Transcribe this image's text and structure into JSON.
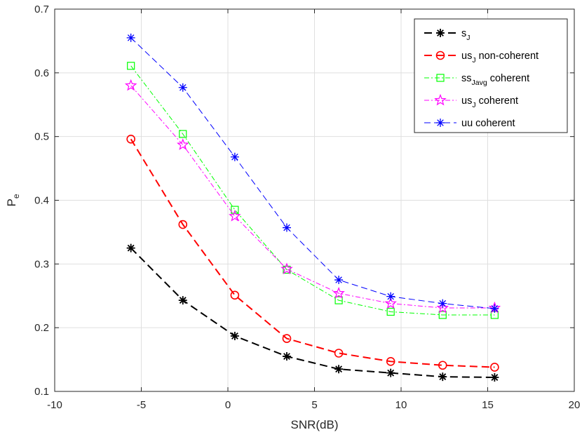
{
  "chart_data": {
    "type": "line",
    "title": "",
    "xlabel": "SNR(dB)",
    "ylabel": {
      "base": "P",
      "sub": "e"
    },
    "xlim": [
      -10,
      20
    ],
    "ylim": [
      0.1,
      0.7
    ],
    "xticks": [
      -10,
      -5,
      0,
      5,
      10,
      15,
      20
    ],
    "yticks": [
      0.1,
      0.2,
      0.3,
      0.4,
      0.5,
      0.6,
      0.7
    ],
    "xtick_labels": [
      "-10",
      "-5",
      "0",
      "5",
      "10",
      "15",
      "20"
    ],
    "ytick_labels": [
      "0.1",
      "0.2",
      "0.3",
      "0.4",
      "0.5",
      "0.6",
      "0.7"
    ],
    "grid": true,
    "legend_position": "top-right",
    "x": [
      -5.6,
      -2.6,
      0.4,
      3.4,
      6.4,
      9.4,
      12.4,
      15.4
    ],
    "series": [
      {
        "name": "s_J",
        "label": {
          "base": "s",
          "sub": "J",
          "rest": ""
        },
        "color": "#000000",
        "marker": "asterisk",
        "dash": "long-dash",
        "values": [
          0.325,
          0.243,
          0.187,
          0.155,
          0.135,
          0.129,
          0.123,
          0.122
        ]
      },
      {
        "name": "us_J non-coherent",
        "label": {
          "base": "us",
          "sub": "J",
          "rest": " non-coherent"
        },
        "color": "#ff0000",
        "marker": "circle",
        "dash": "long-dash",
        "values": [
          0.496,
          0.362,
          0.251,
          0.183,
          0.16,
          0.147,
          0.141,
          0.138
        ]
      },
      {
        "name": "ss_Javg coherent",
        "label": {
          "base": "ss",
          "sub": "Javg",
          "rest": " coherent"
        },
        "color": "#00ff00",
        "marker": "square",
        "dash": "dash-dot",
        "values": [
          0.611,
          0.504,
          0.385,
          0.291,
          0.243,
          0.225,
          0.22,
          0.22
        ]
      },
      {
        "name": "us_J coherent",
        "label": {
          "base": "us",
          "sub": "J",
          "rest": " coherent"
        },
        "color": "#ff00ff",
        "marker": "pentagram",
        "dash": "dash-dot",
        "values": [
          0.58,
          0.487,
          0.375,
          0.292,
          0.254,
          0.238,
          0.231,
          0.231
        ]
      },
      {
        "name": "uu coherent",
        "label": {
          "base": "uu coherent",
          "sub": "",
          "rest": ""
        },
        "color": "#0000ff",
        "marker": "asterisk",
        "dash": "dash",
        "values": [
          0.655,
          0.577,
          0.468,
          0.357,
          0.275,
          0.249,
          0.238,
          0.23
        ]
      }
    ]
  }
}
